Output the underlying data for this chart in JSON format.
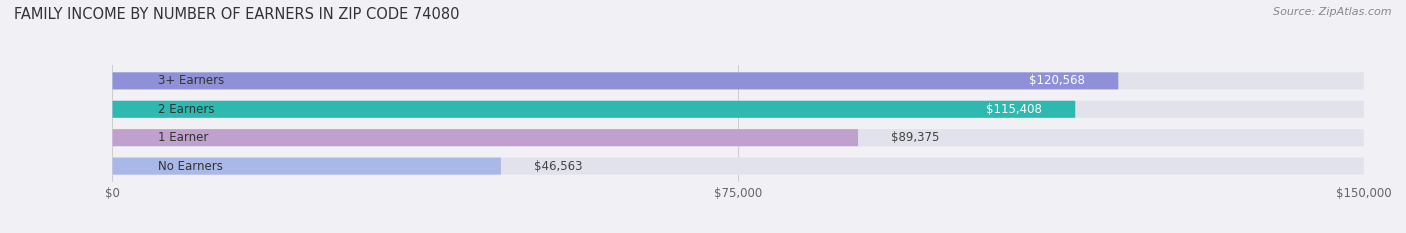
{
  "title": "FAMILY INCOME BY NUMBER OF EARNERS IN ZIP CODE 74080",
  "source": "Source: ZipAtlas.com",
  "categories": [
    "No Earners",
    "1 Earner",
    "2 Earners",
    "3+ Earners"
  ],
  "values": [
    46563,
    89375,
    115408,
    120568
  ],
  "bar_colors": [
    "#aab8e8",
    "#c0a0cc",
    "#2db8b0",
    "#9090d8"
  ],
  "label_colors": [
    "#555555",
    "#555555",
    "#ffffff",
    "#ffffff"
  ],
  "value_labels": [
    "$46,563",
    "$89,375",
    "$115,408",
    "$120,568"
  ],
  "xlim": [
    0,
    150000
  ],
  "xticks": [
    0,
    75000,
    150000
  ],
  "xtick_labels": [
    "$0",
    "$75,000",
    "$150,000"
  ],
  "background_color": "#f0f0f5",
  "bar_background_color": "#e2e2ec",
  "title_fontsize": 10.5,
  "source_fontsize": 8
}
